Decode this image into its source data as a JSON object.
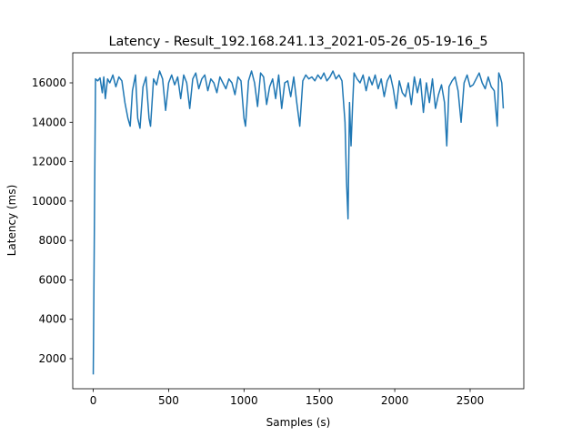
{
  "chart_data": {
    "type": "line",
    "title": "Latency - Result_192.168.241.13_2021-05-26_05-19-16_5",
    "xlabel": "Samples  (s)",
    "ylabel": "Latency (ms)",
    "x": [
      0,
      15,
      30,
      45,
      60,
      70,
      80,
      95,
      110,
      130,
      150,
      170,
      190,
      210,
      230,
      245,
      260,
      280,
      295,
      310,
      330,
      350,
      370,
      380,
      400,
      420,
      440,
      460,
      480,
      500,
      520,
      540,
      560,
      580,
      600,
      620,
      640,
      660,
      680,
      700,
      720,
      740,
      760,
      780,
      800,
      820,
      840,
      860,
      880,
      900,
      920,
      940,
      960,
      980,
      1000,
      1010,
      1030,
      1050,
      1070,
      1090,
      1110,
      1130,
      1150,
      1170,
      1190,
      1210,
      1230,
      1250,
      1270,
      1290,
      1310,
      1330,
      1350,
      1370,
      1390,
      1410,
      1430,
      1450,
      1470,
      1490,
      1510,
      1530,
      1550,
      1570,
      1590,
      1610,
      1630,
      1650,
      1670,
      1680,
      1690,
      1700,
      1710,
      1720,
      1730,
      1750,
      1770,
      1790,
      1810,
      1830,
      1850,
      1870,
      1890,
      1910,
      1930,
      1950,
      1970,
      1990,
      2010,
      2030,
      2050,
      2070,
      2090,
      2110,
      2130,
      2150,
      2170,
      2190,
      2210,
      2230,
      2250,
      2270,
      2290,
      2310,
      2330,
      2345,
      2360,
      2380,
      2400,
      2420,
      2440,
      2460,
      2480,
      2500,
      2520,
      2540,
      2560,
      2580,
      2600,
      2620,
      2640,
      2660,
      2680,
      2690,
      2700,
      2710,
      2720
    ],
    "series": [
      {
        "color": "#1f77b4",
        "values": [
          1200,
          16200,
          16100,
          16250,
          15500,
          16300,
          15200,
          16200,
          16000,
          16400,
          15800,
          16300,
          16100,
          15000,
          14200,
          13800,
          15600,
          16400,
          14200,
          13700,
          15800,
          16300,
          14200,
          13800,
          16200,
          15900,
          16600,
          16200,
          14600,
          16000,
          16400,
          15900,
          16300,
          15200,
          16400,
          16000,
          14700,
          16200,
          16500,
          15700,
          16200,
          16400,
          15600,
          16200,
          16000,
          15500,
          16300,
          16000,
          15700,
          16200,
          16000,
          15400,
          16300,
          16100,
          14200,
          13800,
          16100,
          16600,
          16000,
          14800,
          16500,
          16300,
          14900,
          15800,
          16200,
          15200,
          16400,
          14700,
          16000,
          16100,
          15300,
          16300,
          15000,
          13800,
          16100,
          16400,
          16200,
          16300,
          16100,
          16400,
          16200,
          16500,
          16100,
          16300,
          16600,
          16200,
          16400,
          16100,
          14000,
          11000,
          9100,
          15000,
          12800,
          14800,
          16500,
          16200,
          16000,
          16400,
          15600,
          16300,
          15900,
          16400,
          15700,
          16200,
          15300,
          16100,
          16400,
          15700,
          14700,
          16100,
          15500,
          15300,
          16000,
          14900,
          16300,
          15500,
          16200,
          14500,
          16000,
          15000,
          16200,
          14700,
          15400,
          15900,
          15000,
          12800,
          15800,
          16100,
          16300,
          15600,
          14000,
          16000,
          16400,
          15800,
          15900,
          16200,
          16500,
          16000,
          15700,
          16300,
          15800,
          15600,
          13800,
          16500,
          16300,
          16000,
          14700
        ]
      }
    ],
    "xlim": [
      -136,
      2856
    ],
    "ylim": [
      475,
      17525
    ],
    "xticks": [
      0,
      500,
      1000,
      1500,
      2000,
      2500
    ],
    "yticks": [
      2000,
      4000,
      6000,
      8000,
      10000,
      12000,
      14000,
      16000
    ]
  }
}
